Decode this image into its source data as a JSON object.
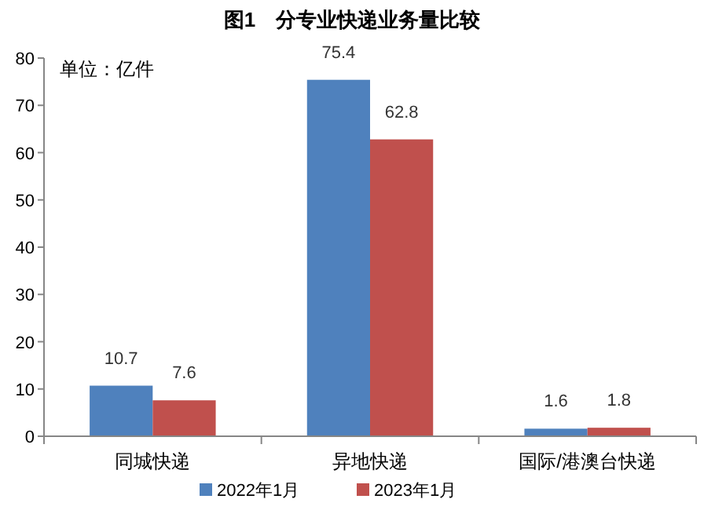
{
  "chart_data": {
    "type": "bar",
    "title": "图1　分专业快递业务量比较",
    "annotations": [
      "单位：亿件"
    ],
    "categories": [
      "同城快递",
      "异地快递",
      "国际/港澳台快递"
    ],
    "series": [
      {
        "name": "2022年1月",
        "color": "#4f81bd",
        "values": [
          10.7,
          75.4,
          1.6
        ]
      },
      {
        "name": "2023年1月",
        "color": "#c0504d",
        "values": [
          7.6,
          62.8,
          1.8
        ]
      }
    ],
    "ylim": [
      0,
      80
    ],
    "yticks": [
      0,
      10,
      20,
      30,
      40,
      50,
      60,
      70,
      80
    ],
    "grid": false,
    "legend": "bottom",
    "data_labels": true
  }
}
